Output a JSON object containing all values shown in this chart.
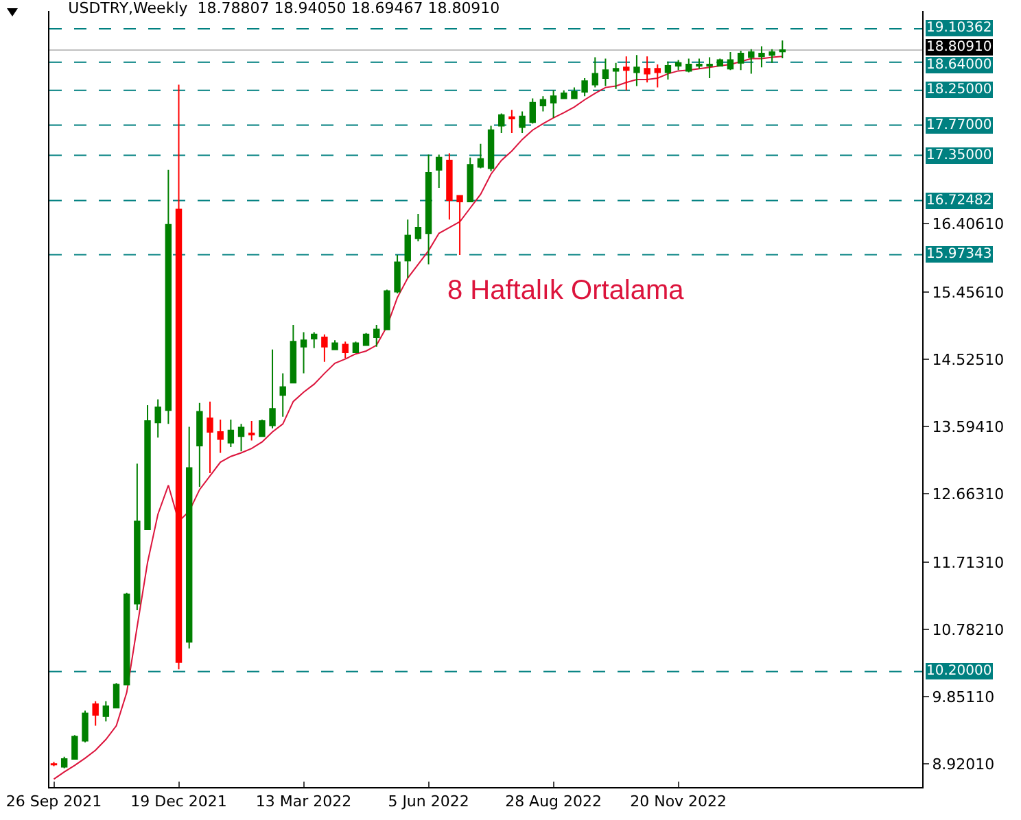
{
  "chart_data": {
    "type": "candlestick",
    "title": "USDTRY,Weekly  18.78807 18.94050 18.69467 18.80910",
    "x": [
      "2021-09-26",
      "2021-10-03",
      "2021-10-10",
      "2021-10-17",
      "2021-10-24",
      "2021-10-31",
      "2021-11-07",
      "2021-11-14",
      "2021-11-21",
      "2021-11-28",
      "2021-12-05",
      "2021-12-12",
      "2021-12-19",
      "2021-12-26",
      "2022-01-02",
      "2022-01-09",
      "2022-01-16",
      "2022-01-23",
      "2022-01-30",
      "2022-02-06",
      "2022-02-13",
      "2022-02-20",
      "2022-02-27",
      "2022-03-06",
      "2022-03-13",
      "2022-03-20",
      "2022-03-27",
      "2022-04-03",
      "2022-04-10",
      "2022-04-17",
      "2022-04-24",
      "2022-05-01",
      "2022-05-08",
      "2022-05-15",
      "2022-05-22",
      "2022-05-29",
      "2022-06-05",
      "2022-06-12",
      "2022-06-19",
      "2022-06-26",
      "2022-07-03",
      "2022-07-10",
      "2022-07-17",
      "2022-07-24",
      "2022-07-31",
      "2022-08-07",
      "2022-08-14",
      "2022-08-21",
      "2022-08-28",
      "2022-09-04",
      "2022-09-11",
      "2022-09-18",
      "2022-09-25",
      "2022-10-02",
      "2022-10-09",
      "2022-10-16",
      "2022-10-23",
      "2022-10-30",
      "2022-11-06",
      "2022-11-13",
      "2022-11-20",
      "2022-11-27",
      "2022-12-04",
      "2022-12-11",
      "2022-12-18",
      "2022-12-25",
      "2023-01-01",
      "2023-01-08",
      "2023-01-15",
      "2023-01-22",
      "2023-01-29"
    ],
    "xlim": [
      "2021-09-23",
      "2023-05-03"
    ],
    "xticks": [
      {
        "value": "2021-09-26",
        "label": "26 Sep 2021"
      },
      {
        "value": "2021-12-19",
        "label": "19 Dec 2021"
      },
      {
        "value": "2022-03-13",
        "label": "13 Mar 2022"
      },
      {
        "value": "2022-06-05",
        "label": "5 Jun 2022"
      },
      {
        "value": "2022-08-28",
        "label": "28 Aug 2022"
      },
      {
        "value": "2022-11-20",
        "label": "20 Nov 2022"
      }
    ],
    "ylim": [
      8.6,
      19.35
    ],
    "yticks": [
      {
        "value": 8.9201,
        "label": "8.92010"
      },
      {
        "value": 9.8511,
        "label": "9.85110"
      },
      {
        "value": 10.7821,
        "label": "10.78210"
      },
      {
        "value": 11.7131,
        "label": "11.71310"
      },
      {
        "value": 12.6631,
        "label": "12.66310"
      },
      {
        "value": 13.5941,
        "label": "13.59410"
      },
      {
        "value": 14.5251,
        "label": "14.52510"
      },
      {
        "value": 15.4561,
        "label": "15.45610"
      },
      {
        "value": 16.4061,
        "label": "16.40610"
      }
    ],
    "ohlc": [
      [
        8.92,
        8.95,
        8.89,
        8.91
      ],
      [
        8.88,
        9.02,
        8.86,
        8.99
      ],
      [
        8.99,
        9.32,
        8.98,
        9.3
      ],
      [
        9.24,
        9.66,
        9.22,
        9.62
      ],
      [
        9.75,
        9.79,
        9.45,
        9.6
      ],
      [
        9.58,
        9.79,
        9.51,
        9.72
      ],
      [
        9.7,
        10.04,
        9.7,
        10.02
      ],
      [
        10.02,
        11.29,
        10.02,
        11.27
      ],
      [
        11.14,
        13.08,
        11.05,
        12.28
      ],
      [
        12.17,
        13.89,
        12.17,
        13.67
      ],
      [
        13.65,
        13.97,
        13.44,
        13.86
      ],
      [
        13.82,
        17.15,
        13.63,
        16.39
      ],
      [
        16.6,
        18.33,
        10.23,
        10.33
      ],
      [
        10.61,
        13.59,
        10.52,
        13.02
      ],
      [
        13.33,
        13.92,
        12.76,
        13.8
      ],
      [
        13.71,
        13.94,
        12.95,
        13.52
      ],
      [
        13.52,
        13.69,
        13.23,
        13.42
      ],
      [
        13.37,
        13.69,
        13.31,
        13.54
      ],
      [
        13.46,
        13.63,
        13.25,
        13.58
      ],
      [
        13.5,
        13.67,
        13.4,
        13.48
      ],
      [
        13.46,
        13.69,
        13.46,
        13.67
      ],
      [
        13.61,
        14.66,
        13.57,
        13.84
      ],
      [
        14.03,
        14.33,
        13.73,
        14.14
      ],
      [
        14.2,
        15.0,
        14.2,
        14.77
      ],
      [
        14.7,
        14.9,
        14.33,
        14.79
      ],
      [
        14.81,
        14.9,
        14.68,
        14.87
      ],
      [
        14.83,
        14.87,
        14.49,
        14.7
      ],
      [
        14.66,
        14.79,
        14.66,
        14.75
      ],
      [
        14.73,
        14.77,
        14.54,
        14.62
      ],
      [
        14.62,
        14.77,
        14.62,
        14.75
      ],
      [
        14.72,
        14.89,
        14.72,
        14.87
      ],
      [
        14.83,
        15.0,
        14.7,
        14.94
      ],
      [
        14.94,
        15.49,
        14.94,
        15.47
      ],
      [
        15.46,
        15.97,
        15.44,
        15.87
      ],
      [
        15.89,
        16.46,
        15.65,
        16.24
      ],
      [
        16.2,
        16.54,
        16.16,
        16.35
      ],
      [
        16.27,
        17.36,
        15.84,
        17.11
      ],
      [
        17.15,
        17.36,
        16.9,
        17.32
      ],
      [
        17.28,
        17.38,
        16.46,
        16.73
      ],
      [
        16.79,
        16.79,
        15.97,
        16.71
      ],
      [
        16.71,
        17.32,
        16.71,
        17.22
      ],
      [
        17.19,
        17.51,
        17.17,
        17.3
      ],
      [
        17.17,
        17.76,
        17.13,
        17.7
      ],
      [
        17.76,
        17.93,
        17.66,
        17.91
      ],
      [
        17.88,
        17.98,
        17.66,
        17.86
      ],
      [
        17.74,
        17.96,
        17.66,
        17.89
      ],
      [
        17.81,
        18.14,
        17.79,
        18.08
      ],
      [
        18.04,
        18.17,
        17.96,
        18.12
      ],
      [
        18.08,
        18.25,
        17.87,
        18.17
      ],
      [
        18.14,
        18.25,
        18.14,
        18.21
      ],
      [
        18.14,
        18.29,
        18.14,
        18.23
      ],
      [
        18.23,
        18.42,
        18.17,
        18.38
      ],
      [
        18.33,
        18.71,
        18.29,
        18.48
      ],
      [
        18.42,
        18.69,
        18.31,
        18.53
      ],
      [
        18.52,
        18.63,
        18.27,
        18.55
      ],
      [
        18.57,
        18.72,
        18.25,
        18.53
      ],
      [
        18.5,
        18.74,
        18.31,
        18.57
      ],
      [
        18.55,
        18.72,
        18.36,
        18.48
      ],
      [
        18.55,
        18.61,
        18.29,
        18.5
      ],
      [
        18.5,
        18.65,
        18.4,
        18.59
      ],
      [
        18.59,
        18.67,
        18.53,
        18.63
      ],
      [
        18.52,
        18.69,
        18.5,
        18.61
      ],
      [
        18.59,
        18.69,
        18.55,
        18.61
      ],
      [
        18.59,
        18.71,
        18.42,
        18.61
      ],
      [
        18.59,
        18.69,
        18.59,
        18.67
      ],
      [
        18.55,
        18.78,
        18.53,
        18.67
      ],
      [
        18.63,
        18.8,
        18.53,
        18.76
      ],
      [
        18.71,
        18.82,
        18.48,
        18.78
      ],
      [
        18.72,
        18.86,
        18.57,
        18.76
      ],
      [
        18.74,
        18.82,
        18.63,
        18.78
      ],
      [
        18.78807,
        18.9405,
        18.69467,
        18.8091
      ]
    ],
    "series": [
      {
        "type": "line",
        "name": "8 Haftalık Ortalama",
        "color": "#dc143c",
        "values": [
          8.71,
          8.81,
          8.9,
          9.0,
          9.11,
          9.26,
          9.45,
          9.91,
          10.82,
          11.71,
          12.38,
          12.78,
          12.28,
          12.42,
          12.72,
          12.91,
          13.1,
          13.18,
          13.23,
          13.29,
          13.38,
          13.52,
          13.63,
          13.94,
          14.07,
          14.18,
          14.33,
          14.47,
          14.53,
          14.6,
          14.64,
          14.72,
          14.98,
          15.38,
          15.65,
          15.84,
          16.03,
          16.27,
          16.35,
          16.43,
          16.62,
          16.81,
          17.09,
          17.28,
          17.41,
          17.57,
          17.7,
          17.79,
          17.87,
          17.94,
          18.02,
          18.12,
          18.21,
          18.29,
          18.31,
          18.36,
          18.4,
          18.4,
          18.42,
          18.48,
          18.52,
          18.53,
          18.55,
          18.57,
          18.59,
          18.61,
          18.65,
          18.69,
          18.69,
          18.71,
          18.72
        ]
      }
    ],
    "ref_lines": [
      {
        "axis": "y",
        "value": 19.10362,
        "label": "19.10362",
        "color": "#008080",
        "line_style": "dashed"
      },
      {
        "axis": "y",
        "value": 18.8091,
        "label": "18.80910",
        "color": "#c0c0c0",
        "line_style": "solid"
      },
      {
        "axis": "y",
        "value": 18.64,
        "label": "18.64000",
        "color": "#008080",
        "line_style": "dashed"
      },
      {
        "axis": "y",
        "value": 18.25,
        "label": "18.25000",
        "color": "#008080",
        "line_style": "dashed"
      },
      {
        "axis": "y",
        "value": 17.77,
        "label": "17.77000",
        "color": "#008080",
        "line_style": "dashed"
      },
      {
        "axis": "y",
        "value": 17.35,
        "label": "17.35000",
        "color": "#008080",
        "line_style": "dashed"
      },
      {
        "axis": "y",
        "value": 16.72482,
        "label": "16.72482",
        "color": "#008080",
        "line_style": "dashed"
      },
      {
        "axis": "y",
        "value": 15.97343,
        "label": "15.97343",
        "color": "#008080",
        "line_style": "dashed"
      },
      {
        "axis": "y",
        "value": 10.2,
        "label": "10.20000",
        "color": "#008080",
        "line_style": "dashed"
      }
    ]
  }
}
